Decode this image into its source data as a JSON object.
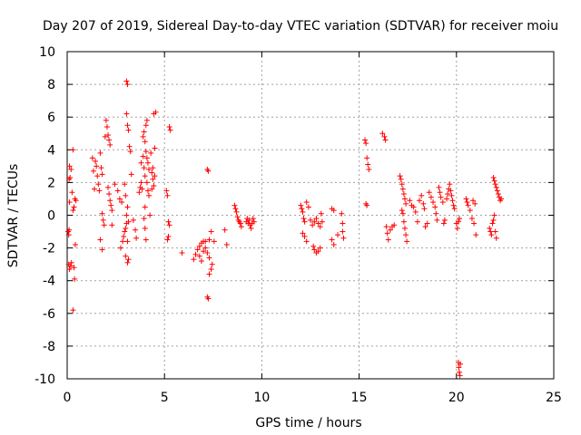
{
  "chart_data": {
    "type": "scatter",
    "title": "Day 207 of 2019, Sidereal Day-to-day VTEC variation (SDTVAR) for receiver moiu",
    "xlabel": "GPS time / hours",
    "ylabel": "SDTVAR / TECUs",
    "xlim": [
      0,
      25
    ],
    "ylim": [
      -10,
      10
    ],
    "xticks": [
      0,
      5,
      10,
      15,
      20,
      25
    ],
    "yticks": [
      -10,
      -8,
      -6,
      -4,
      -2,
      0,
      2,
      4,
      6,
      8,
      10
    ],
    "x_tick_labels": [
      "0",
      "5",
      "10",
      "15",
      "20",
      "25"
    ],
    "y_tick_labels": [
      "-10",
      "-8",
      "-6",
      "-4",
      "-2",
      "0",
      "2",
      "4",
      "6",
      "8",
      "10"
    ],
    "grid": true,
    "marker": "+",
    "marker_color": "#ff0000",
    "series": [
      {
        "name": "SDTVAR",
        "points": [
          [
            0.05,
            -1.0
          ],
          [
            0.08,
            -1.2
          ],
          [
            0.1,
            -0.9
          ],
          [
            0.12,
            0.8
          ],
          [
            0.1,
            2.2
          ],
          [
            0.12,
            3.0
          ],
          [
            0.15,
            2.3
          ],
          [
            0.2,
            2.8
          ],
          [
            0.08,
            -3.0
          ],
          [
            0.12,
            -3.3
          ],
          [
            0.18,
            -3.1
          ],
          [
            0.22,
            -2.9
          ],
          [
            0.3,
            4.0
          ],
          [
            0.3,
            -5.8
          ],
          [
            0.35,
            -3.2
          ],
          [
            0.38,
            -3.9
          ],
          [
            0.4,
            1.0
          ],
          [
            0.42,
            -1.8
          ],
          [
            0.45,
            0.9
          ],
          [
            0.25,
            1.4
          ],
          [
            0.3,
            0.3
          ],
          [
            0.35,
            0.5
          ],
          [
            1.3,
            3.5
          ],
          [
            1.35,
            2.7
          ],
          [
            1.4,
            1.6
          ],
          [
            1.45,
            3.3
          ],
          [
            1.5,
            3.0
          ],
          [
            1.55,
            2.4
          ],
          [
            1.6,
            1.9
          ],
          [
            1.65,
            1.5
          ],
          [
            1.7,
            3.8
          ],
          [
            1.75,
            2.9
          ],
          [
            1.8,
            2.5
          ],
          [
            1.8,
            0.1
          ],
          [
            1.85,
            -0.3
          ],
          [
            1.9,
            -0.6
          ],
          [
            1.8,
            -2.1
          ],
          [
            1.7,
            -1.5
          ],
          [
            1.95,
            4.8
          ],
          [
            2.0,
            5.8
          ],
          [
            2.05,
            5.4
          ],
          [
            2.1,
            4.9
          ],
          [
            2.15,
            4.6
          ],
          [
            2.2,
            4.3
          ],
          [
            2.1,
            1.7
          ],
          [
            2.15,
            1.3
          ],
          [
            2.2,
            0.9
          ],
          [
            2.25,
            0.6
          ],
          [
            2.3,
            0.3
          ],
          [
            2.3,
            -0.6
          ],
          [
            2.45,
            1.9
          ],
          [
            2.6,
            1.5
          ],
          [
            2.7,
            1.0
          ],
          [
            2.8,
            0.8
          ],
          [
            2.75,
            -2.0
          ],
          [
            2.85,
            -1.6
          ],
          [
            2.9,
            -1.3
          ],
          [
            2.95,
            -1.0
          ],
          [
            3.0,
            -0.8
          ],
          [
            3.05,
            -0.5
          ],
          [
            3.0,
            -2.5
          ],
          [
            3.1,
            -2.9
          ],
          [
            3.15,
            -2.7
          ],
          [
            2.95,
            1.9
          ],
          [
            3.0,
            1.2
          ],
          [
            3.1,
            0.5
          ],
          [
            3.05,
            0.0
          ],
          [
            3.1,
            -1.6
          ],
          [
            3.15,
            -0.4
          ],
          [
            3.05,
            8.2
          ],
          [
            3.1,
            8.0
          ],
          [
            3.05,
            6.2
          ],
          [
            3.1,
            5.5
          ],
          [
            3.15,
            5.2
          ],
          [
            3.2,
            4.2
          ],
          [
            3.25,
            3.9
          ],
          [
            3.3,
            2.5
          ],
          [
            3.4,
            -0.3
          ],
          [
            3.5,
            -0.9
          ],
          [
            3.55,
            -1.4
          ],
          [
            3.7,
            1.4
          ],
          [
            3.75,
            1.7
          ],
          [
            3.8,
            2.0
          ],
          [
            3.85,
            1.6
          ],
          [
            3.9,
            4.8
          ],
          [
            3.95,
            5.1
          ],
          [
            4.0,
            4.5
          ],
          [
            4.05,
            3.9
          ],
          [
            4.1,
            3.5
          ],
          [
            4.15,
            3.2
          ],
          [
            4.2,
            2.8
          ],
          [
            4.05,
            5.5
          ],
          [
            4.1,
            5.8
          ],
          [
            3.8,
            3.2
          ],
          [
            3.9,
            3.6
          ],
          [
            3.95,
            2.9
          ],
          [
            4.0,
            2.4
          ],
          [
            4.1,
            2.0
          ],
          [
            4.15,
            1.5
          ],
          [
            4.2,
            1.2
          ],
          [
            4.25,
            0.0
          ],
          [
            4.0,
            0.5
          ],
          [
            3.95,
            -0.2
          ],
          [
            4.0,
            -0.8
          ],
          [
            4.05,
            -1.5
          ],
          [
            4.3,
            3.8
          ],
          [
            4.35,
            2.6
          ],
          [
            4.4,
            2.2
          ],
          [
            4.45,
            1.8
          ],
          [
            4.5,
            2.4
          ],
          [
            4.5,
            4.1
          ],
          [
            4.55,
            6.3
          ],
          [
            4.45,
            6.2
          ],
          [
            4.4,
            2.9
          ],
          [
            4.35,
            1.6
          ],
          [
            5.1,
            1.5
          ],
          [
            5.15,
            1.2
          ],
          [
            5.2,
            -0.4
          ],
          [
            5.25,
            -0.6
          ],
          [
            5.15,
            -1.5
          ],
          [
            5.2,
            -1.3
          ],
          [
            5.25,
            5.4
          ],
          [
            5.3,
            5.2
          ],
          [
            5.9,
            -2.3
          ],
          [
            6.5,
            -2.7
          ],
          [
            6.6,
            -2.4
          ],
          [
            6.7,
            -2.1
          ],
          [
            6.8,
            -1.9
          ],
          [
            6.9,
            -1.7
          ],
          [
            7.0,
            -1.6
          ],
          [
            7.1,
            -2.0
          ],
          [
            7.2,
            -2.3
          ],
          [
            7.3,
            -2.6
          ],
          [
            6.8,
            -2.5
          ],
          [
            6.9,
            -2.8
          ],
          [
            7.0,
            -2.2
          ],
          [
            7.1,
            -1.6
          ],
          [
            7.3,
            -1.5
          ],
          [
            7.4,
            -1.0
          ],
          [
            7.2,
            2.8
          ],
          [
            7.25,
            2.7
          ],
          [
            7.2,
            -5.0
          ],
          [
            7.25,
            -5.1
          ],
          [
            7.3,
            -3.6
          ],
          [
            7.4,
            -3.3
          ],
          [
            7.45,
            -3.0
          ],
          [
            7.55,
            -1.6
          ],
          [
            8.1,
            -0.9
          ],
          [
            8.2,
            -1.8
          ],
          [
            8.6,
            0.6
          ],
          [
            8.65,
            0.4
          ],
          [
            8.7,
            0.2
          ],
          [
            8.75,
            -0.1
          ],
          [
            8.8,
            -0.3
          ],
          [
            8.85,
            -0.4
          ],
          [
            8.9,
            -0.5
          ],
          [
            8.95,
            -0.7
          ],
          [
            9.2,
            -0.4
          ],
          [
            9.25,
            -0.2
          ],
          [
            9.3,
            -0.5
          ],
          [
            9.35,
            -0.3
          ],
          [
            9.4,
            -0.6
          ],
          [
            9.45,
            -0.8
          ],
          [
            9.5,
            -0.5
          ],
          [
            9.55,
            -0.2
          ],
          [
            9.6,
            -0.4
          ],
          [
            12.0,
            0.6
          ],
          [
            12.05,
            0.4
          ],
          [
            12.1,
            0.2
          ],
          [
            12.15,
            -0.2
          ],
          [
            12.2,
            -0.4
          ],
          [
            12.1,
            -1.1
          ],
          [
            12.2,
            -1.3
          ],
          [
            12.3,
            -1.6
          ],
          [
            12.3,
            0.8
          ],
          [
            12.4,
            0.5
          ],
          [
            12.5,
            -0.3
          ],
          [
            12.6,
            -0.6
          ],
          [
            12.65,
            -1.9
          ],
          [
            12.7,
            -2.1
          ],
          [
            12.8,
            -2.3
          ],
          [
            12.9,
            -2.2
          ],
          [
            13.0,
            -2.0
          ],
          [
            12.7,
            -0.4
          ],
          [
            12.8,
            -0.2
          ],
          [
            12.9,
            -0.5
          ],
          [
            13.0,
            -0.7
          ],
          [
            13.05,
            0.1
          ],
          [
            13.1,
            -0.4
          ],
          [
            13.6,
            0.4
          ],
          [
            13.7,
            0.3
          ],
          [
            13.6,
            -1.5
          ],
          [
            13.7,
            -1.8
          ],
          [
            13.9,
            -1.2
          ],
          [
            14.1,
            0.1
          ],
          [
            14.15,
            -0.5
          ],
          [
            14.2,
            -1.4
          ],
          [
            14.15,
            -1.0
          ],
          [
            15.3,
            4.6
          ],
          [
            15.35,
            4.4
          ],
          [
            15.4,
            3.5
          ],
          [
            15.45,
            3.1
          ],
          [
            15.5,
            2.8
          ],
          [
            15.35,
            0.7
          ],
          [
            15.4,
            0.6
          ],
          [
            16.2,
            5.0
          ],
          [
            16.3,
            4.8
          ],
          [
            16.35,
            4.6
          ],
          [
            16.4,
            -0.7
          ],
          [
            16.45,
            -1.1
          ],
          [
            16.5,
            -1.5
          ],
          [
            16.6,
            -0.9
          ],
          [
            16.7,
            -0.7
          ],
          [
            16.8,
            -0.6
          ],
          [
            17.1,
            2.4
          ],
          [
            17.15,
            2.2
          ],
          [
            17.2,
            1.9
          ],
          [
            17.25,
            1.6
          ],
          [
            17.3,
            1.3
          ],
          [
            17.35,
            1.0
          ],
          [
            17.4,
            0.7
          ],
          [
            17.2,
            0.3
          ],
          [
            17.25,
            0.1
          ],
          [
            17.3,
            -0.4
          ],
          [
            17.35,
            -0.8
          ],
          [
            17.4,
            -1.2
          ],
          [
            17.45,
            -1.6
          ],
          [
            17.6,
            0.9
          ],
          [
            17.7,
            0.6
          ],
          [
            17.8,
            0.5
          ],
          [
            17.9,
            0.2
          ],
          [
            18.0,
            -0.4
          ],
          [
            18.1,
            0.9
          ],
          [
            18.2,
            1.2
          ],
          [
            18.3,
            0.7
          ],
          [
            18.35,
            0.4
          ],
          [
            18.4,
            -0.7
          ],
          [
            18.5,
            -0.5
          ],
          [
            18.6,
            1.4
          ],
          [
            18.7,
            1.1
          ],
          [
            18.8,
            0.8
          ],
          [
            18.9,
            0.5
          ],
          [
            18.95,
            0.1
          ],
          [
            19.0,
            -0.3
          ],
          [
            19.1,
            1.7
          ],
          [
            19.15,
            1.4
          ],
          [
            19.2,
            1.1
          ],
          [
            19.3,
            0.8
          ],
          [
            19.35,
            -0.5
          ],
          [
            19.4,
            -0.3
          ],
          [
            19.5,
            1.0
          ],
          [
            19.55,
            1.3
          ],
          [
            19.6,
            1.6
          ],
          [
            19.65,
            1.9
          ],
          [
            19.7,
            1.5
          ],
          [
            19.75,
            1.2
          ],
          [
            19.8,
            0.9
          ],
          [
            19.85,
            0.6
          ],
          [
            19.9,
            0.4
          ],
          [
            20.0,
            -0.5
          ],
          [
            20.05,
            -0.8
          ],
          [
            20.1,
            -0.4
          ],
          [
            20.15,
            -0.2
          ],
          [
            20.1,
            -9.0
          ],
          [
            20.12,
            -9.3
          ],
          [
            20.15,
            -9.6
          ],
          [
            20.18,
            -9.8
          ],
          [
            20.2,
            -9.1
          ],
          [
            20.5,
            1.0
          ],
          [
            20.55,
            0.8
          ],
          [
            20.6,
            0.6
          ],
          [
            20.7,
            0.3
          ],
          [
            20.8,
            -0.2
          ],
          [
            20.9,
            -0.5
          ],
          [
            21.0,
            -1.2
          ],
          [
            20.85,
            0.9
          ],
          [
            20.95,
            0.7
          ],
          [
            21.7,
            -0.8
          ],
          [
            21.75,
            -1.0
          ],
          [
            21.8,
            -1.2
          ],
          [
            21.85,
            -0.5
          ],
          [
            21.9,
            -0.3
          ],
          [
            21.95,
            0.0
          ],
          [
            22.0,
            -1.0
          ],
          [
            22.05,
            -1.4
          ],
          [
            21.9,
            2.3
          ],
          [
            21.95,
            2.1
          ],
          [
            22.0,
            1.9
          ],
          [
            22.05,
            1.7
          ],
          [
            22.1,
            1.5
          ],
          [
            22.15,
            1.3
          ],
          [
            22.2,
            1.1
          ],
          [
            22.25,
            0.9
          ],
          [
            22.3,
            1.0
          ]
        ]
      }
    ]
  }
}
